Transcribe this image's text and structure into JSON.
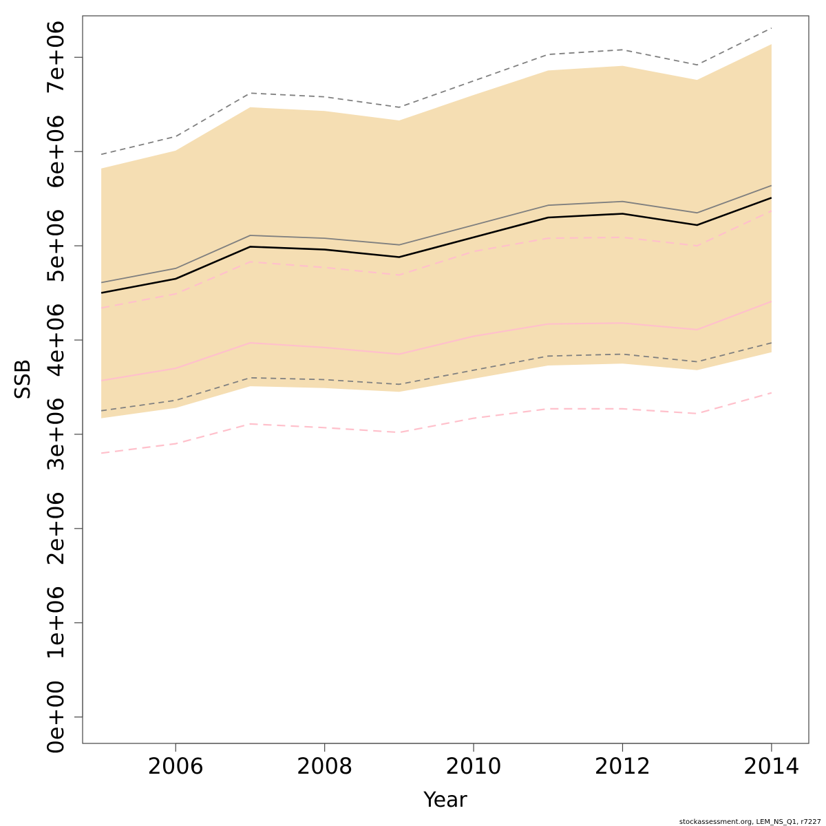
{
  "chart_data": {
    "type": "line",
    "xlabel": "Year",
    "ylabel": "SSB",
    "xlim": [
      2004.75,
      2014.5
    ],
    "ylim": [
      -280000,
      7440000
    ],
    "x_ticks": [
      2006,
      2008,
      2010,
      2012,
      2014
    ],
    "x_tick_labels": [
      "2006",
      "2008",
      "2010",
      "2012",
      "2014"
    ],
    "y_ticks": [
      0,
      1000000,
      2000000,
      3000000,
      4000000,
      5000000,
      6000000,
      7000000
    ],
    "y_tick_labels": [
      "0e+00",
      "1e+06",
      "2e+06",
      "3e+06",
      "4e+06",
      "5e+06",
      "6e+06",
      "7e+06"
    ],
    "grid": false,
    "x": [
      2005,
      2006,
      2007,
      2008,
      2009,
      2010,
      2011,
      2012,
      2013,
      2014
    ],
    "band": {
      "color": "#f5deb3",
      "lower": [
        3170000,
        3280000,
        3510000,
        3490000,
        3450000,
        3590000,
        3730000,
        3750000,
        3680000,
        3870000
      ],
      "upper": [
        5820000,
        6010000,
        6470000,
        6430000,
        6330000,
        6600000,
        6860000,
        6910000,
        6760000,
        7140000
      ]
    },
    "series": [
      {
        "color": "#7f7f7f",
        "dash": "8,6",
        "width": 1.8,
        "values": [
          5970000,
          6160000,
          6620000,
          6580000,
          6470000,
          6750000,
          7030000,
          7080000,
          6920000,
          7310000
        ]
      },
      {
        "color": "#7f7f7f",
        "dash": "",
        "width": 1.8,
        "values": [
          4610000,
          4760000,
          5110000,
          5080000,
          5010000,
          5220000,
          5430000,
          5470000,
          5350000,
          5640000
        ]
      },
      {
        "color": "#7f7f7f",
        "dash": "8,6",
        "width": 1.8,
        "values": [
          3250000,
          3360000,
          3600000,
          3580000,
          3530000,
          3680000,
          3830000,
          3850000,
          3770000,
          3970000
        ]
      },
      {
        "color": "#ffc0cb",
        "dash": "12,8",
        "width": 2.2,
        "values": [
          4340000,
          4490000,
          4830000,
          4770000,
          4690000,
          4940000,
          5080000,
          5090000,
          5000000,
          5370000
        ]
      },
      {
        "color": "#ffc0cb",
        "dash": "",
        "width": 2.2,
        "values": [
          3570000,
          3700000,
          3970000,
          3920000,
          3850000,
          4040000,
          4170000,
          4180000,
          4110000,
          4410000
        ]
      },
      {
        "color": "#ffc0cb",
        "dash": "12,8",
        "width": 2.2,
        "values": [
          2800000,
          2900000,
          3110000,
          3070000,
          3020000,
          3170000,
          3270000,
          3270000,
          3220000,
          3440000
        ]
      },
      {
        "color": "#000000",
        "dash": "",
        "width": 2.6,
        "values": [
          4500000,
          4650000,
          4990000,
          4960000,
          4880000,
          5090000,
          5300000,
          5340000,
          5220000,
          5510000
        ]
      }
    ],
    "footnote": "stockassessment.org, LEM_NS_Q1, r7227"
  }
}
